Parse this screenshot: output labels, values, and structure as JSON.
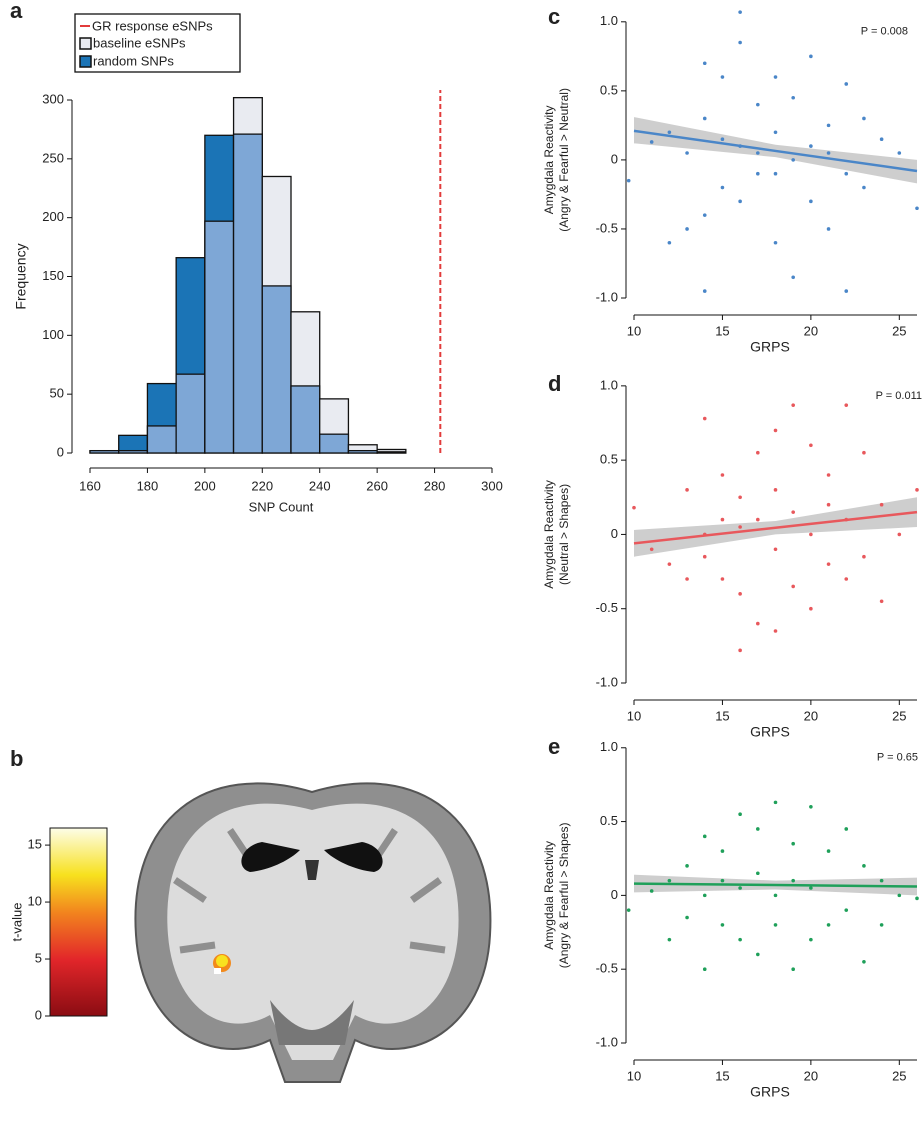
{
  "chart_data": [
    {
      "type": "histogram",
      "panel_label": "a",
      "xlabel": "SNP Count",
      "ylabel": "Frequency",
      "bins": [
        160,
        170,
        180,
        190,
        200,
        210,
        220,
        230,
        240,
        250,
        260,
        270
      ],
      "series": [
        {
          "name": "baseline eSNPs",
          "color": "#e9ebf1",
          "values": [
            2,
            2,
            23,
            67,
            197,
            302,
            235,
            120,
            46,
            7,
            3
          ]
        },
        {
          "name": "random SNPs",
          "color": "#1b74b6",
          "values": [
            2,
            15,
            59,
            166,
            270,
            271,
            142,
            57,
            16,
            2,
            1
          ]
        }
      ],
      "overlap_color": "#7ea7d6",
      "vline": {
        "name": "GR response eSNPs",
        "x": 282,
        "color": "#e23b3b"
      },
      "xlim": [
        160,
        300
      ],
      "xticks": [
        160,
        180,
        200,
        220,
        240,
        260,
        280,
        300
      ],
      "ylim": [
        0,
        300
      ],
      "yticks": [
        0,
        50,
        100,
        150,
        200,
        250,
        300
      ]
    },
    {
      "type": "brain-map",
      "panel_label": "b",
      "colorbar": {
        "label": "t-value",
        "lim": [
          0,
          16.5
        ],
        "ticks": [
          0,
          5,
          10,
          15
        ]
      }
    },
    {
      "type": "scatter",
      "panel_label": "c",
      "annotation": "P = 0.008",
      "xlabel": "GRPS",
      "ylabel": [
        "Amygdala Reactivity",
        "(Angry & Fearful > Neutral)"
      ],
      "color": "#4a86c8",
      "x": [
        9.7,
        11,
        12,
        12,
        13,
        13,
        14,
        14,
        14,
        14,
        15,
        15,
        15,
        16,
        16,
        16,
        16,
        17,
        17,
        17,
        18,
        18,
        18,
        18,
        19,
        19,
        19,
        20,
        20,
        20,
        21,
        21,
        21,
        22,
        22,
        22,
        23,
        23,
        24,
        25,
        26
      ],
      "values": [
        -0.15,
        0.13,
        -0.6,
        0.2,
        0.05,
        -0.5,
        0.7,
        -0.95,
        0.3,
        -0.4,
        0.15,
        -0.2,
        0.6,
        0.85,
        0.1,
        -0.3,
        1.07,
        0.4,
        -0.1,
        0.05,
        0.6,
        -0.6,
        0.2,
        -0.1,
        -0.85,
        0.45,
        0.0,
        0.75,
        -0.3,
        0.1,
        -0.5,
        0.25,
        0.05,
        -0.95,
        0.55,
        -0.1,
        0.3,
        -0.2,
        0.15,
        0.05,
        -0.35
      ],
      "fit": {
        "x": [
          10,
          18,
          26
        ],
        "y": [
          0.21,
          0.065,
          -0.08
        ],
        "lower": [
          0.12,
          0.02,
          -0.17
        ],
        "upper": [
          0.31,
          0.11,
          0.0
        ]
      },
      "xlim": [
        10,
        26
      ],
      "xticks": [
        10,
        15,
        20,
        25
      ],
      "ylim": [
        -1.0,
        1.1
      ],
      "yticks": [
        {
          "value": -1,
          "label": "-1.0"
        },
        -0.5,
        0,
        0.5,
        {
          "value": 1,
          "label": "1.0"
        }
      ]
    },
    {
      "type": "scatter",
      "panel_label": "d",
      "annotation": "P = 0.011",
      "xlabel": "GRPS",
      "ylabel": [
        "Amygdala Reactivity",
        "(Neutral > Shapes)"
      ],
      "color": "#e8585c",
      "x": [
        10,
        11,
        12,
        13,
        13,
        14,
        14,
        14,
        15,
        15,
        15,
        16,
        16,
        16,
        16,
        17,
        17,
        17,
        18,
        18,
        18,
        18,
        19,
        19,
        19,
        20,
        20,
        20,
        21,
        21,
        21,
        22,
        22,
        22,
        23,
        23,
        24,
        24,
        25,
        26
      ],
      "values": [
        0.18,
        -0.1,
        -0.2,
        0.3,
        -0.3,
        0.78,
        0.0,
        -0.15,
        0.4,
        -0.3,
        0.1,
        -0.78,
        0.25,
        -0.4,
        0.05,
        0.55,
        -0.6,
        0.1,
        0.7,
        -0.65,
        -0.1,
        0.3,
        0.87,
        -0.35,
        0.15,
        0.6,
        -0.5,
        0.0,
        0.4,
        -0.2,
        0.2,
        0.87,
        -0.3,
        0.1,
        0.55,
        -0.15,
        0.2,
        -0.45,
        0.0,
        0.3
      ],
      "fit": {
        "x": [
          10,
          18,
          26
        ],
        "y": [
          -0.06,
          0.045,
          0.15
        ],
        "lower": [
          -0.15,
          0.0,
          0.05
        ],
        "upper": [
          0.03,
          0.09,
          0.25
        ]
      },
      "xlim": [
        10,
        26
      ],
      "xticks": [
        10,
        15,
        20,
        25
      ],
      "ylim": [
        -1.0,
        1.1
      ],
      "yticks": [
        {
          "value": -1,
          "label": "-1.0"
        },
        -0.5,
        0,
        0.5,
        {
          "value": 1,
          "label": "1.0"
        }
      ]
    },
    {
      "type": "scatter",
      "panel_label": "e",
      "annotation": "P = 0.65",
      "xlabel": "GRPS",
      "ylabel": [
        "Amygdala Reactivity",
        "(Angry & Fearful > Shapes)"
      ],
      "color": "#1fa05a",
      "x": [
        9.7,
        11,
        12,
        12,
        13,
        13,
        14,
        14,
        14,
        15,
        15,
        15,
        16,
        16,
        16,
        17,
        17,
        17,
        18,
        18,
        18,
        19,
        19,
        19,
        20,
        20,
        20,
        21,
        21,
        22,
        22,
        23,
        23,
        24,
        24,
        25,
        26
      ],
      "values": [
        -0.1,
        0.03,
        -0.3,
        0.1,
        0.2,
        -0.15,
        0.4,
        -0.5,
        0.0,
        0.3,
        -0.2,
        0.1,
        0.55,
        -0.3,
        0.05,
        0.45,
        -0.4,
        0.15,
        0.63,
        -0.2,
        0.0,
        0.35,
        -0.5,
        0.1,
        0.6,
        -0.3,
        0.05,
        0.3,
        -0.2,
        0.45,
        -0.1,
        0.2,
        -0.45,
        0.1,
        -0.2,
        0.0,
        -0.02
      ],
      "fit": {
        "x": [
          10,
          18,
          26
        ],
        "y": [
          0.08,
          0.07,
          0.06
        ],
        "lower": [
          0.02,
          0.04,
          0.0
        ],
        "upper": [
          0.14,
          0.1,
          0.12
        ]
      },
      "xlim": [
        10,
        26
      ],
      "xticks": [
        10,
        15,
        20,
        25
      ],
      "ylim": [
        -1.0,
        1.1
      ],
      "yticks": [
        {
          "value": -1,
          "label": "-1.0"
        },
        -0.5,
        0,
        0.5,
        {
          "value": 1,
          "label": "1.0"
        }
      ]
    }
  ]
}
